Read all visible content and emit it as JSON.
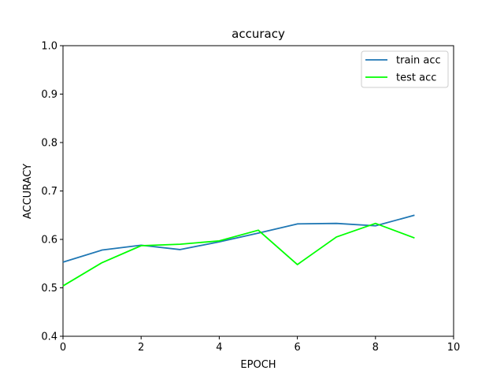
{
  "chart_data": {
    "type": "line",
    "title": "accuracy",
    "xlabel": "EPOCH",
    "ylabel": "ACCURACY",
    "xlim": [
      0,
      10
    ],
    "ylim": [
      0.4,
      1.0
    ],
    "xticks": [
      "0",
      "2",
      "4",
      "6",
      "8",
      "10"
    ],
    "xtick_values": [
      0,
      2,
      4,
      6,
      8,
      10
    ],
    "yticks": [
      "0.4",
      "0.5",
      "0.6",
      "0.7",
      "0.8",
      "0.9",
      "1.0"
    ],
    "ytick_values": [
      0.4,
      0.5,
      0.6,
      0.7,
      0.8,
      0.9,
      1.0
    ],
    "grid": false,
    "legend_position": "top-right",
    "x": [
      0,
      1,
      2,
      3,
      4,
      5,
      6,
      7,
      8,
      9
    ],
    "series": [
      {
        "name": "train acc",
        "color": "#1f77b4",
        "values": [
          0.553,
          0.578,
          0.588,
          0.579,
          0.595,
          0.613,
          0.632,
          0.633,
          0.628,
          0.65
        ]
      },
      {
        "name": "test acc",
        "color": "#00ff00",
        "values": [
          0.504,
          0.552,
          0.587,
          0.59,
          0.597,
          0.619,
          0.548,
          0.605,
          0.633,
          0.603
        ]
      }
    ]
  }
}
